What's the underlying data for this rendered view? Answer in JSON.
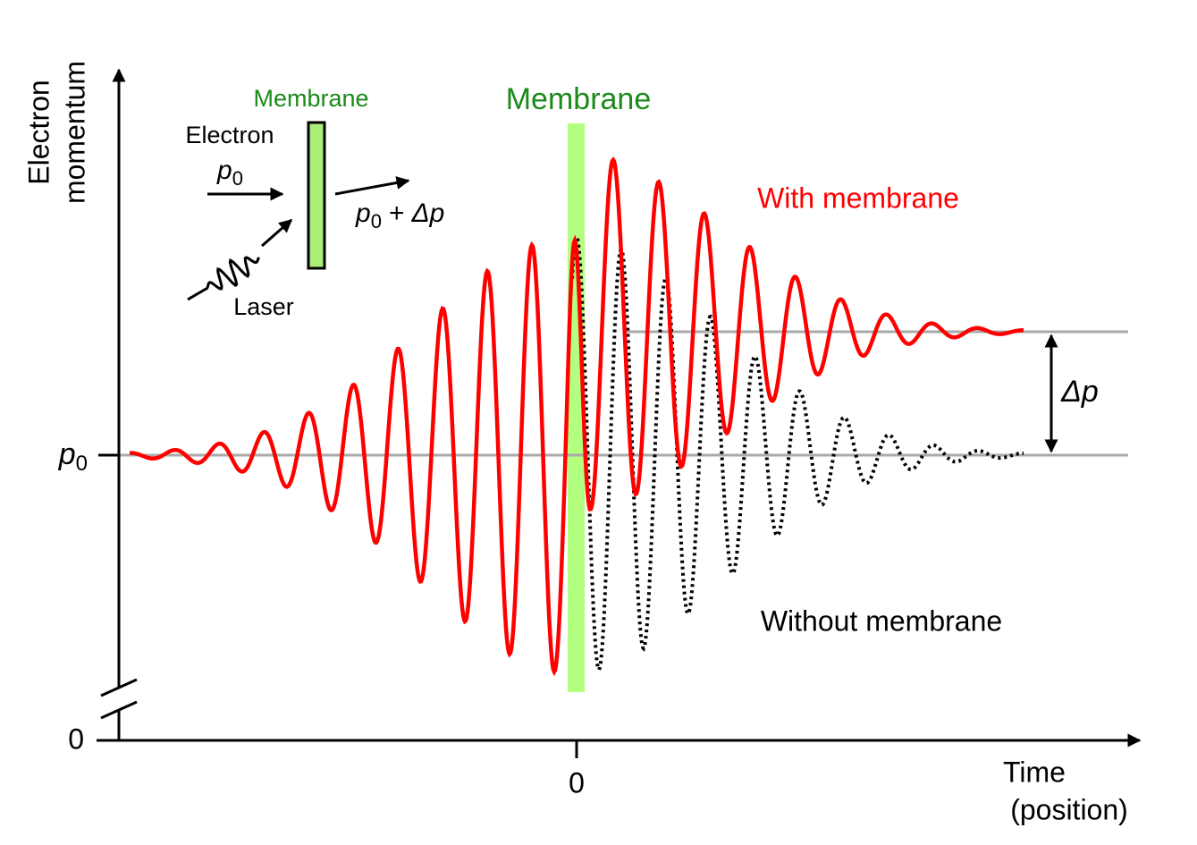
{
  "axes": {
    "y_label": [
      "Electron",
      "momentum"
    ],
    "y_origin_label": "0",
    "y_ref_label": {
      "symbol": "p",
      "subscript": "0"
    },
    "x_label": [
      "Time",
      "(position)"
    ],
    "x_origin_label": "0"
  },
  "membrane_label": "Membrane",
  "curves": {
    "with": "With membrane",
    "without": "Without membrane"
  },
  "delta_label": "Δp",
  "inset": {
    "membrane": "Membrane",
    "electron": "Electron",
    "incoming": {
      "symbol": "p",
      "subscript": "0"
    },
    "outgoing": {
      "symbol": "p",
      "subscript": "0",
      "plus": "+",
      "delta": "Δp"
    },
    "laser": "Laser"
  }
}
